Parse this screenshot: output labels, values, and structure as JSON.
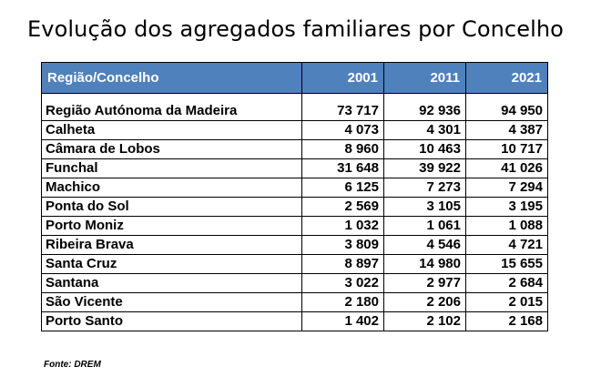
{
  "title": "Evolução dos agregados familiares por Concelho",
  "table": {
    "headers": [
      "Região/Concelho",
      "2001",
      "2011",
      "2021"
    ],
    "rows": [
      {
        "name": "Região Autónoma da Madeira",
        "v2001": "73 717",
        "v2011": "92 936",
        "v2021": "94 950"
      },
      {
        "name": "Calheta",
        "v2001": "4 073",
        "v2011": "4 301",
        "v2021": "4 387"
      },
      {
        "name": "Câmara de Lobos",
        "v2001": "8 960",
        "v2011": "10 463",
        "v2021": "10 717"
      },
      {
        "name": "Funchal",
        "v2001": "31 648",
        "v2011": "39 922",
        "v2021": "41 026"
      },
      {
        "name": "Machico",
        "v2001": "6 125",
        "v2011": "7 273",
        "v2021": "7 294"
      },
      {
        "name": "Ponta do Sol",
        "v2001": "2 569",
        "v2011": "3 105",
        "v2021": "3 195"
      },
      {
        "name": "Porto Moniz",
        "v2001": "1 032",
        "v2011": "1 061",
        "v2021": "1 088"
      },
      {
        "name": "Ribeira Brava",
        "v2001": "3 809",
        "v2011": "4 546",
        "v2021": "4 721"
      },
      {
        "name": "Santa Cruz",
        "v2001": "8 897",
        "v2011": "14 980",
        "v2021": "15 655"
      },
      {
        "name": "Santana",
        "v2001": "3 022",
        "v2011": "2 977",
        "v2021": "2 684"
      },
      {
        "name": "São Vicente",
        "v2001": "2 180",
        "v2011": "2 206",
        "v2021": "2 015"
      },
      {
        "name": "Porto Santo",
        "v2001": "1 402",
        "v2011": "2 102",
        "v2021": "2 168"
      }
    ]
  },
  "source": "Fonte: DREM",
  "colors": {
    "header_bg": "#4f81bd",
    "header_text": "#ffffff",
    "border": "#000000"
  }
}
